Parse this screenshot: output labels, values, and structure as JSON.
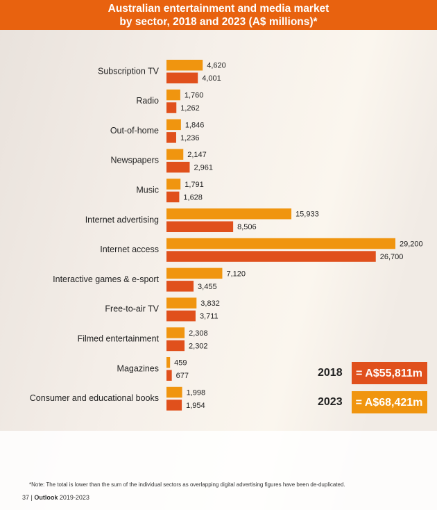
{
  "chart_data": {
    "type": "bar",
    "orientation": "horizontal",
    "title": [
      "Australian entertainment and media market",
      "by sector, 2018 and 2023 (A$ millions)*"
    ],
    "categories": [
      "Subscription TV",
      "Radio",
      "Out-of-home",
      "Newspapers",
      "Music",
      "Internet advertising",
      "Internet access",
      "Interactive games & e-sport",
      "Free-to-air TV",
      "Filmed entertainment",
      "Magazines",
      "Consumer and educational books"
    ],
    "series": [
      {
        "name": "2023",
        "color": "#f0950f",
        "values": [
          4620,
          1760,
          1846,
          2147,
          1791,
          15933,
          29200,
          7120,
          3832,
          2308,
          459,
          1998
        ],
        "value_labels": [
          "4,620",
          "1,760",
          "1,846",
          "2,147",
          "1,791",
          "15,933",
          "29,200",
          "7,120",
          "3,832",
          "2,308",
          "459",
          "1,998"
        ],
        "total": 68421,
        "total_label": "= A$68,421m"
      },
      {
        "name": "2018",
        "color": "#e0501c",
        "values": [
          4001,
          1262,
          1236,
          2961,
          1628,
          8506,
          26700,
          3455,
          3711,
          2302,
          677,
          1954
        ],
        "value_labels": [
          "4,001",
          "1,262",
          "1,236",
          "2,961",
          "1,628",
          "8,506",
          "26,700",
          "3,455",
          "3,711",
          "2,302",
          "677",
          "1,954"
        ],
        "total": 55811,
        "total_label": "= A$55,811m"
      }
    ],
    "note": "*Note: The total is lower than the sum of the individual sectors as overlapping digital advertising figures have been de-duplicated.",
    "footer_page": "37 |",
    "footer_title": "Outlook",
    "footer_years": "2019-2023"
  }
}
